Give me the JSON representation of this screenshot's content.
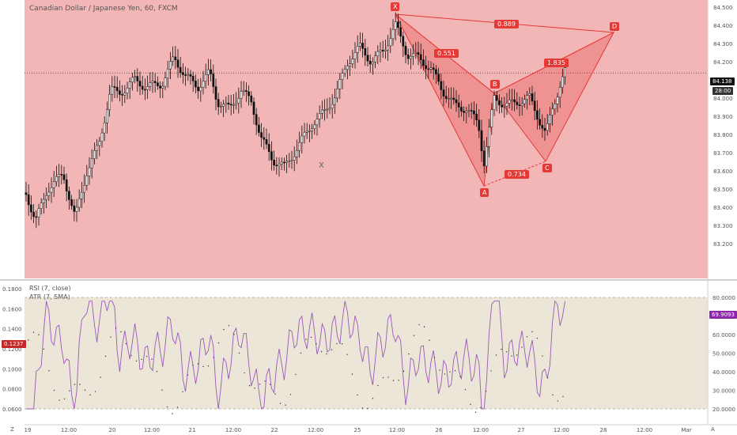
{
  "header": {
    "symbol_title": "Canadian Dollar / Japanese Yen, 60, FXCM"
  },
  "price_axis": {
    "ticks": [
      "84.500",
      "84.400",
      "84.300",
      "84.200",
      "84.000",
      "83.900",
      "83.800",
      "83.700",
      "83.600",
      "83.500",
      "83.400",
      "83.300",
      "83.200"
    ],
    "current_price": "84.138",
    "countdown": "28:00"
  },
  "indicators": {
    "rsi_title": "RSI (7, close)",
    "atr_title": "ATR (7, SMA)",
    "rsi_value": "69.9093",
    "atr_value": "0.1237",
    "right_ticks": [
      "80.0000",
      "70.0000",
      "60.0000",
      "50.0000",
      "40.0000",
      "30.0000",
      "20.0000"
    ],
    "left_ticks": [
      "0.1800",
      "0.1600",
      "0.1400",
      "0.1200",
      "0.1000",
      "0.0800",
      "0.0600"
    ]
  },
  "time_axis": {
    "labels": [
      "19",
      "12:00",
      "20",
      "12:00",
      "21",
      "12:00",
      "22",
      "12:00",
      "25",
      "12:00",
      "26",
      "12:00",
      "27",
      "12:00",
      "28",
      "12:00",
      "Mar"
    ],
    "left_corner": "Z",
    "right_corner": "A"
  },
  "pattern": {
    "points": {
      "X": "X",
      "A": "A",
      "B": "B",
      "C": "C",
      "D": "D"
    },
    "ratios": {
      "xd": "0.889",
      "xab": "0.551",
      "bcd": "1.835",
      "abc": "0.734"
    },
    "marker_x": "X"
  },
  "colors": {
    "accent": "#e53935",
    "pane_bg": "#f2b6b6",
    "rsi_line": "#9b59b6",
    "rsi_band": "#ece6d8",
    "candle": "#111111"
  }
}
